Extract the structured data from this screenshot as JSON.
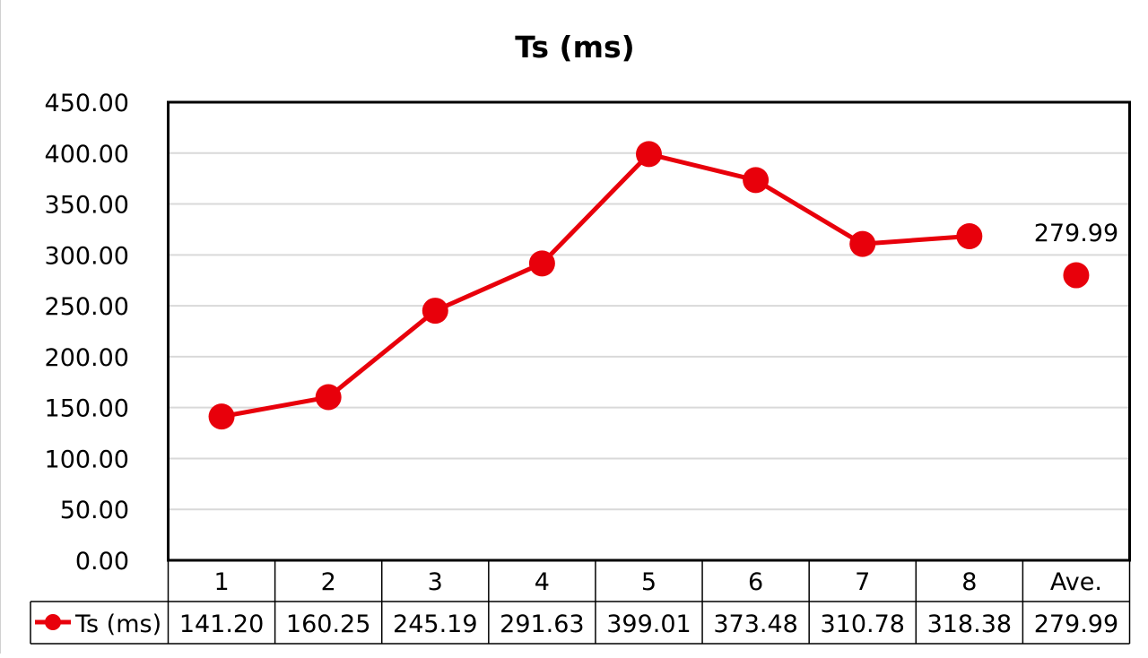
{
  "chart_data": {
    "type": "line",
    "title": "Ts  (ms)",
    "categories": [
      "1",
      "2",
      "3",
      "4",
      "5",
      "6",
      "7",
      "8",
      "Ave."
    ],
    "series": [
      {
        "name": "Ts  (ms)",
        "color": "#e8000b",
        "values": [
          141.2,
          160.25,
          245.19,
          291.63,
          399.01,
          373.48,
          310.78,
          318.38,
          279.99
        ],
        "connected_count": 8
      }
    ],
    "table_values": [
      "141.20",
      "160.25",
      "245.19",
      "291.63",
      "399.01",
      "373.48",
      "310.78",
      "318.38",
      "279.99"
    ],
    "y_ticks": [
      "0.00",
      "50.00",
      "100.00",
      "150.00",
      "200.00",
      "250.00",
      "300.00",
      "350.00",
      "400.00",
      "450.00"
    ],
    "ylim": [
      0,
      450
    ],
    "grid": true,
    "data_labels": [
      {
        "category": "Ave.",
        "text": "279.99"
      }
    ],
    "legend": "data-table"
  }
}
